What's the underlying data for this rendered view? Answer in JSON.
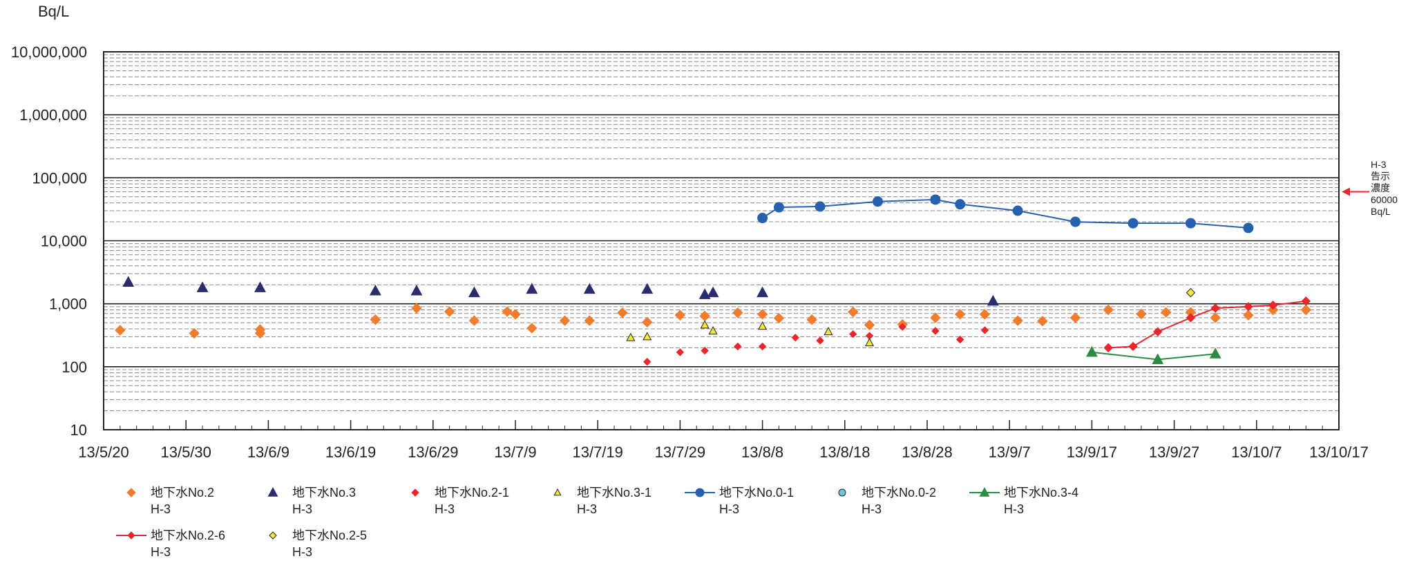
{
  "chart_data": {
    "type": "scatter",
    "ylabel": "Bq/L",
    "yscale": "log",
    "ylim": [
      10,
      10000000
    ],
    "y_ticks": [
      {
        "value": 10,
        "label": "10"
      },
      {
        "value": 100,
        "label": "100"
      },
      {
        "value": 1000,
        "label": "1,000"
      },
      {
        "value": 10000,
        "label": "10,000"
      },
      {
        "value": 100000,
        "label": "100,000"
      },
      {
        "value": 1000000,
        "label": "1,000,000"
      },
      {
        "value": 10000000,
        "label": "10,000,000"
      }
    ],
    "xlim": [
      "2013-05-20",
      "2013-10-17"
    ],
    "x_ticks": [
      {
        "date": "2013-05-20",
        "label": "13/5/20"
      },
      {
        "date": "2013-05-30",
        "label": "13/5/30"
      },
      {
        "date": "2013-06-09",
        "label": "13/6/9"
      },
      {
        "date": "2013-06-19",
        "label": "13/6/19"
      },
      {
        "date": "2013-06-29",
        "label": "13/6/29"
      },
      {
        "date": "2013-07-09",
        "label": "13/7/9"
      },
      {
        "date": "2013-07-19",
        "label": "13/7/19"
      },
      {
        "date": "2013-07-29",
        "label": "13/7/29"
      },
      {
        "date": "2013-08-08",
        "label": "13/8/8"
      },
      {
        "date": "2013-08-18",
        "label": "13/8/18"
      },
      {
        "date": "2013-08-28",
        "label": "13/8/28"
      },
      {
        "date": "2013-09-07",
        "label": "13/9/7"
      },
      {
        "date": "2013-09-17",
        "label": "13/9/17"
      },
      {
        "date": "2013-09-27",
        "label": "13/9/27"
      },
      {
        "date": "2013-10-07",
        "label": "13/10/7"
      },
      {
        "date": "2013-10-17",
        "label": "13/10/17"
      }
    ],
    "grid": true,
    "legend_position": "bottom",
    "annotation": {
      "lines": [
        "H-3",
        "告示",
        "濃度",
        "60000",
        "Bq/L"
      ],
      "value": 60000,
      "color": "#e8262c"
    },
    "series": [
      {
        "name": "地下水No.2",
        "name2": "H-3",
        "marker": "diamond",
        "line": false,
        "color": "#f07c2c",
        "stroke": "#f07c2c",
        "size": 7,
        "points": [
          [
            "2013-05-22",
            380
          ],
          [
            "2013-05-31",
            340
          ],
          [
            "2013-06-08",
            340
          ],
          [
            "2013-06-08",
            390
          ],
          [
            "2013-06-22",
            560
          ],
          [
            "2013-06-27",
            850
          ],
          [
            "2013-07-01",
            750
          ],
          [
            "2013-07-04",
            540
          ],
          [
            "2013-07-08",
            750
          ],
          [
            "2013-07-09",
            680
          ],
          [
            "2013-07-11",
            410
          ],
          [
            "2013-07-15",
            540
          ],
          [
            "2013-07-18",
            540
          ],
          [
            "2013-07-22",
            720
          ],
          [
            "2013-07-25",
            510
          ],
          [
            "2013-07-29",
            660
          ],
          [
            "2013-08-01",
            640
          ],
          [
            "2013-08-05",
            720
          ],
          [
            "2013-08-08",
            680
          ],
          [
            "2013-08-10",
            590
          ],
          [
            "2013-08-14",
            560
          ],
          [
            "2013-08-19",
            740
          ],
          [
            "2013-08-21",
            460
          ],
          [
            "2013-08-25",
            470
          ],
          [
            "2013-08-29",
            600
          ],
          [
            "2013-09-01",
            680
          ],
          [
            "2013-09-04",
            680
          ],
          [
            "2013-09-08",
            540
          ],
          [
            "2013-09-11",
            530
          ],
          [
            "2013-09-15",
            600
          ],
          [
            "2013-09-19",
            800
          ],
          [
            "2013-09-23",
            690
          ],
          [
            "2013-09-26",
            730
          ],
          [
            "2013-09-29",
            730
          ],
          [
            "2013-10-02",
            600
          ],
          [
            "2013-10-06",
            660
          ],
          [
            "2013-10-09",
            800
          ],
          [
            "2013-10-13",
            800
          ]
        ]
      },
      {
        "name": "地下水No.3",
        "name2": "H-3",
        "marker": "triangle",
        "line": false,
        "color": "#2b2c6c",
        "stroke": "#2b2c6c",
        "size": 8,
        "points": [
          [
            "2013-05-23",
            2200
          ],
          [
            "2013-06-01",
            1800
          ],
          [
            "2013-06-08",
            1800
          ],
          [
            "2013-06-22",
            1600
          ],
          [
            "2013-06-27",
            1600
          ],
          [
            "2013-07-04",
            1500
          ],
          [
            "2013-07-11",
            1700
          ],
          [
            "2013-07-18",
            1700
          ],
          [
            "2013-07-25",
            1700
          ],
          [
            "2013-08-01",
            1400
          ],
          [
            "2013-08-02",
            1500
          ],
          [
            "2013-08-08",
            1500
          ],
          [
            "2013-09-05",
            1100
          ]
        ]
      },
      {
        "name": "地下水No.2-1",
        "name2": "H-3",
        "marker": "diamond",
        "line": false,
        "color": "#e8262c",
        "stroke": "#e8262c",
        "size": 5,
        "points": [
          [
            "2013-07-25",
            120
          ],
          [
            "2013-07-29",
            170
          ],
          [
            "2013-08-01",
            180
          ],
          [
            "2013-08-05",
            210
          ],
          [
            "2013-08-08",
            210
          ],
          [
            "2013-08-12",
            290
          ],
          [
            "2013-08-15",
            260
          ],
          [
            "2013-08-19",
            330
          ],
          [
            "2013-08-21",
            310
          ],
          [
            "2013-08-25",
            430
          ],
          [
            "2013-08-29",
            370
          ],
          [
            "2013-09-01",
            270
          ],
          [
            "2013-09-04",
            380
          ]
        ]
      },
      {
        "name": "地下水No.3-1",
        "name2": "H-3",
        "marker": "triangle",
        "line": false,
        "color": "#f5ea3c",
        "stroke": "#222222",
        "size": 6,
        "points": [
          [
            "2013-07-23",
            290
          ],
          [
            "2013-07-25",
            300
          ],
          [
            "2013-08-01",
            460
          ],
          [
            "2013-08-02",
            370
          ],
          [
            "2013-08-08",
            440
          ],
          [
            "2013-08-16",
            360
          ],
          [
            "2013-08-21",
            240
          ]
        ]
      },
      {
        "name": "地下水No.0-1",
        "name2": "H-3",
        "marker": "circle",
        "line": true,
        "color": "#2860b0",
        "stroke": "#2860b0",
        "size": 7,
        "points": [
          [
            "2013-08-08",
            23000
          ],
          [
            "2013-08-10",
            34000
          ],
          [
            "2013-08-15",
            35000
          ],
          [
            "2013-08-22",
            42000
          ],
          [
            "2013-08-29",
            45000
          ],
          [
            "2013-09-01",
            38000
          ],
          [
            "2013-09-08",
            30000
          ],
          [
            "2013-09-15",
            20000
          ],
          [
            "2013-09-22",
            19000
          ],
          [
            "2013-09-29",
            19000
          ],
          [
            "2013-10-06",
            16000
          ]
        ]
      },
      {
        "name": "地下水No.0-2",
        "name2": "H-3",
        "marker": "circle",
        "line": false,
        "color": "#6cc4e0",
        "stroke": "#222222",
        "size": 5,
        "points": []
      },
      {
        "name": "地下水No.3-4",
        "name2": "H-3",
        "marker": "triangle",
        "line": true,
        "color": "#2e8b46",
        "stroke": "#2e8b46",
        "size": 8,
        "points": [
          [
            "2013-09-17",
            170
          ],
          [
            "2013-09-25",
            130
          ],
          [
            "2013-10-02",
            160
          ]
        ]
      },
      {
        "name": "地下水No.2-6",
        "name2": "H-3",
        "marker": "diamond",
        "line": true,
        "color": "#e8262c",
        "stroke": "#e8262c",
        "size": 6,
        "points": [
          [
            "2013-09-19",
            200
          ],
          [
            "2013-09-22",
            210
          ],
          [
            "2013-09-25",
            360
          ],
          [
            "2013-09-29",
            600
          ],
          [
            "2013-10-02",
            850
          ],
          [
            "2013-10-06",
            900
          ],
          [
            "2013-10-09",
            950
          ],
          [
            "2013-10-13",
            1100
          ]
        ]
      },
      {
        "name": "地下水No.2-5",
        "name2": "H-3",
        "marker": "diamond",
        "line": false,
        "color": "#f5ea3c",
        "stroke": "#222222",
        "size": 6,
        "points": [
          [
            "2013-09-29",
            1500
          ]
        ]
      }
    ]
  }
}
